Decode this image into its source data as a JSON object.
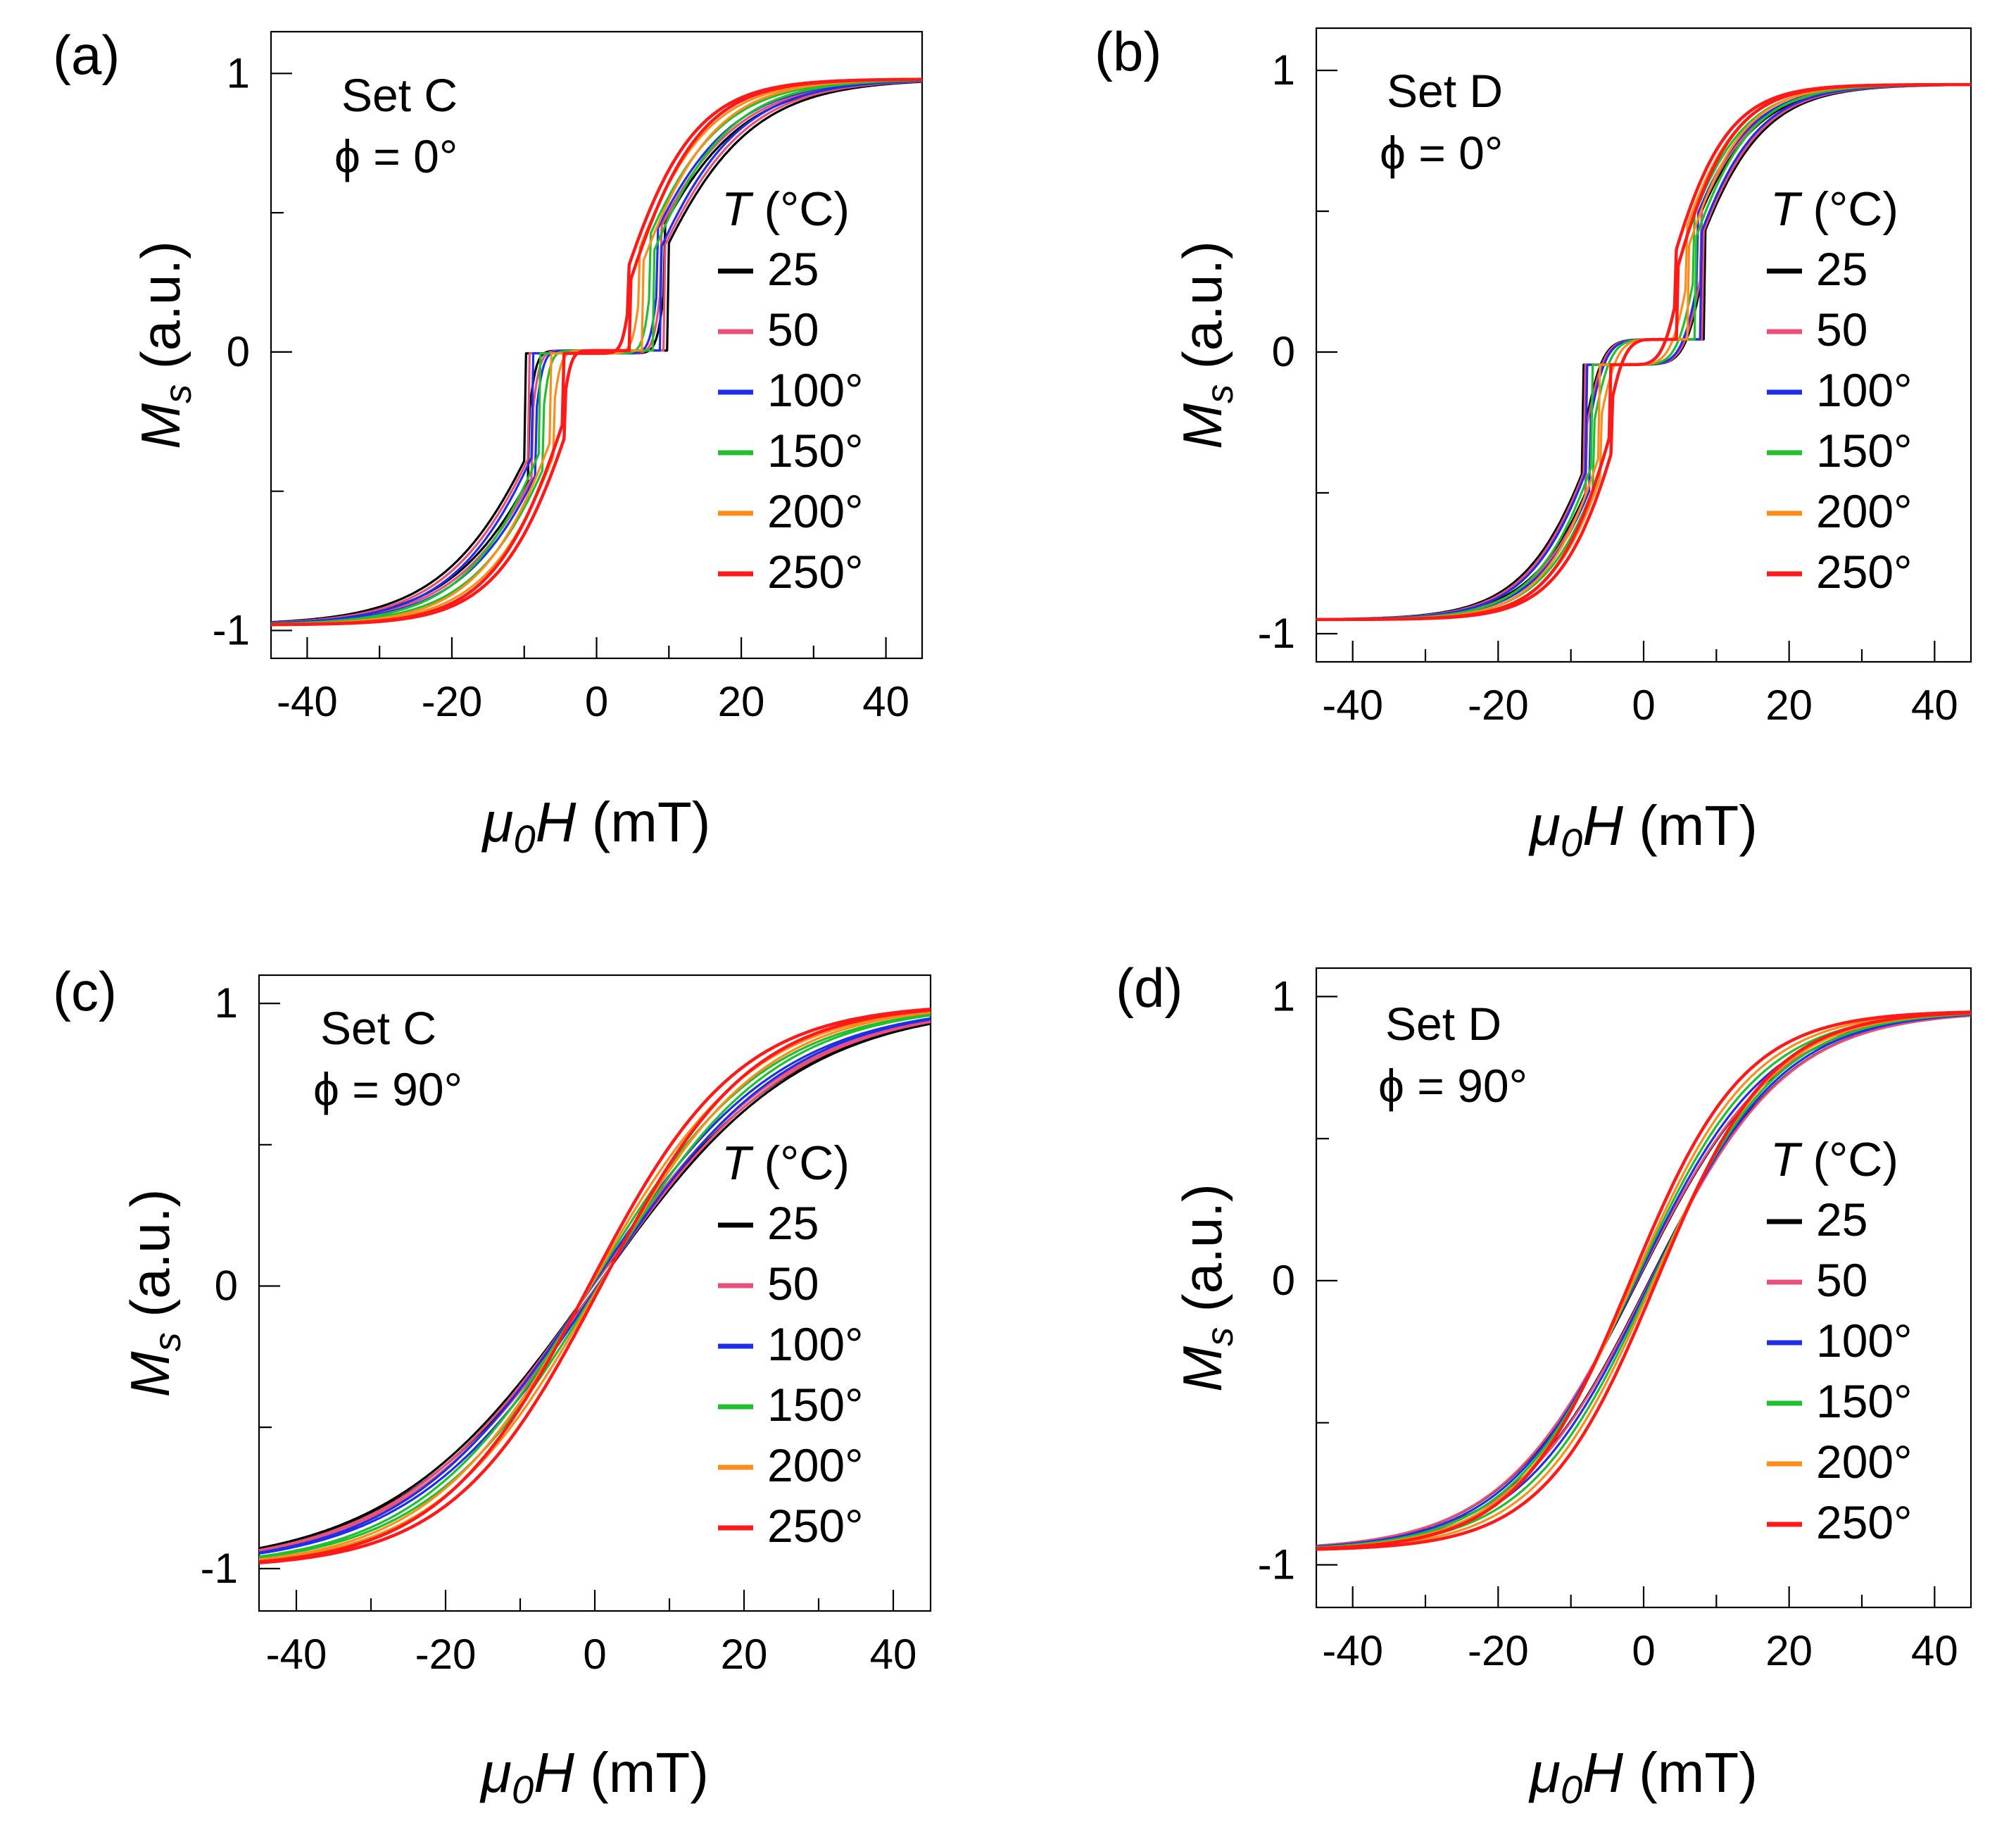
{
  "chart_data": [
    {
      "panel": "(a)",
      "type": "line",
      "title": "",
      "annotation": {
        "set": "Set C",
        "phi": "ϕ = 0°"
      },
      "xlabel": "μ0H (mT)",
      "xlabel_main": "μ",
      "xlabel_sub": "0",
      "xlabel_rest": "H (mT)",
      "ylabel_main": "M",
      "ylabel_sub": "s",
      "ylabel_rest": " (a.u.)",
      "xlim": [
        -45,
        45
      ],
      "ylim": [
        -1.1,
        1.15
      ],
      "xticks": [
        -40,
        -20,
        0,
        20,
        40
      ],
      "yticks": [
        -1,
        0,
        1
      ],
      "curve": "stepped",
      "legend": {
        "title_main": "T",
        "title_rest": " (°C)",
        "location": "right"
      },
      "series": [
        {
          "name": "25",
          "color": "#000000",
          "Hc": 9.5,
          "Hs": 30.0,
          "Ms": 0.98
        },
        {
          "name": "50",
          "color": "#e8507a",
          "Hc": 9.0,
          "Hs": 29.0,
          "Ms": 0.98
        },
        {
          "name": "100°",
          "color": "#1f2ee8",
          "Hc": 8.5,
          "Hs": 28.0,
          "Ms": 0.98
        },
        {
          "name": "150°",
          "color": "#1fbf2e",
          "Hc": 7.5,
          "Hs": 26.0,
          "Ms": 0.98
        },
        {
          "name": "200°",
          "color": "#ff8c1a",
          "Hc": 6.0,
          "Hs": 24.0,
          "Ms": 0.98
        },
        {
          "name": "250°",
          "color": "#ff1a1a",
          "Hc": 4.5,
          "Hs": 22.0,
          "Ms": 0.98
        }
      ]
    },
    {
      "panel": "(b)",
      "type": "line",
      "title": "",
      "annotation": {
        "set": "Set D",
        "phi": "ϕ = 0°"
      },
      "xlabel": "μ0H (mT)",
      "xlabel_main": "μ",
      "xlabel_sub": "0",
      "xlabel_rest": "H (mT)",
      "ylabel_main": "M",
      "ylabel_sub": "s",
      "ylabel_rest": " (a.u.)",
      "xlim": [
        -45,
        45
      ],
      "ylim": [
        -1.1,
        1.15
      ],
      "xticks": [
        -40,
        -20,
        0,
        20,
        40
      ],
      "yticks": [
        -1,
        0,
        1
      ],
      "curve": "stepped_soft",
      "legend": {
        "title_main": "T",
        "title_rest": " (°C)",
        "location": "right"
      },
      "series": [
        {
          "name": "25",
          "color": "#000000",
          "Hc": 8.0,
          "Hs": 22.0,
          "Ms": 0.95
        },
        {
          "name": "50",
          "color": "#e8507a",
          "Hc": 7.8,
          "Hs": 21.5,
          "Ms": 0.95
        },
        {
          "name": "100°",
          "color": "#1f2ee8",
          "Hc": 7.5,
          "Hs": 21.0,
          "Ms": 0.95
        },
        {
          "name": "150°",
          "color": "#1fbf2e",
          "Hc": 6.8,
          "Hs": 20.0,
          "Ms": 0.95
        },
        {
          "name": "200°",
          "color": "#ff8c1a",
          "Hc": 5.8,
          "Hs": 19.0,
          "Ms": 0.95
        },
        {
          "name": "250°",
          "color": "#ff1a1a",
          "Hc": 4.5,
          "Hs": 18.0,
          "Ms": 0.95
        }
      ]
    },
    {
      "panel": "(c)",
      "type": "line",
      "title": "",
      "annotation": {
        "set": "Set C",
        "phi": "ϕ = 90°"
      },
      "xlabel": "μ0H (mT)",
      "xlabel_main": "μ",
      "xlabel_sub": "0",
      "xlabel_rest": "H (mT)",
      "ylabel_main": "M",
      "ylabel_sub": "s",
      "ylabel_rest": " (a.u.)",
      "xlim": [
        -45,
        45
      ],
      "ylim": [
        -1.15,
        1.1
      ],
      "xticks": [
        -40,
        -20,
        0,
        20,
        40
      ],
      "yticks": [
        -1,
        0,
        1
      ],
      "curve": "sigmoid",
      "legend": {
        "title_main": "T",
        "title_rest": " (°C)",
        "location": "right"
      },
      "series": [
        {
          "name": "25",
          "color": "#000000",
          "Hc": 0.3,
          "Hs": 34.0,
          "Ms": 1.0
        },
        {
          "name": "50",
          "color": "#e8507a",
          "Hc": 0.3,
          "Hs": 33.0,
          "Ms": 1.0
        },
        {
          "name": "100°",
          "color": "#1f2ee8",
          "Hc": 0.4,
          "Hs": 31.5,
          "Ms": 1.0
        },
        {
          "name": "150°",
          "color": "#1fbf2e",
          "Hc": 0.5,
          "Hs": 29.0,
          "Ms": 1.0
        },
        {
          "name": "200°",
          "color": "#ff8c1a",
          "Hc": 0.6,
          "Hs": 27.0,
          "Ms": 1.0
        },
        {
          "name": "250°",
          "color": "#ff1a1a",
          "Hc": 0.8,
          "Hs": 25.0,
          "Ms": 1.0
        }
      ]
    },
    {
      "panel": "(d)",
      "type": "line",
      "title": "",
      "annotation": {
        "set": "Set D",
        "phi": "ϕ = 90°"
      },
      "xlabel": "μ0H (mT)",
      "xlabel_main": "μ",
      "xlabel_sub": "0",
      "xlabel_rest": "H (mT)",
      "ylabel_main": "M",
      "ylabel_sub": "s",
      "ylabel_rest": " (a.u.)",
      "xlim": [
        -45,
        45
      ],
      "ylim": [
        -1.15,
        1.1
      ],
      "xticks": [
        -40,
        -20,
        0,
        20,
        40
      ],
      "yticks": [
        -1,
        0,
        1
      ],
      "curve": "sigmoid",
      "legend": {
        "title_main": "T",
        "title_rest": " (°C)",
        "location": "right"
      },
      "series": [
        {
          "name": "25",
          "color": "#000000",
          "Hc": 0.8,
          "Hs": 23.5,
          "Ms": 0.95
        },
        {
          "name": "50",
          "color": "#e8507a",
          "Hc": 0.9,
          "Hs": 23.5,
          "Ms": 0.95
        },
        {
          "name": "100°",
          "color": "#1f2ee8",
          "Hc": 1.0,
          "Hs": 22.5,
          "Ms": 0.95
        },
        {
          "name": "150°",
          "color": "#1fbf2e",
          "Hc": 1.2,
          "Hs": 21.5,
          "Ms": 0.95
        },
        {
          "name": "200°",
          "color": "#ff8c1a",
          "Hc": 1.4,
          "Hs": 20.5,
          "Ms": 0.95
        },
        {
          "name": "250°",
          "color": "#ff1a1a",
          "Hc": 1.8,
          "Hs": 19.5,
          "Ms": 0.95
        }
      ]
    }
  ]
}
